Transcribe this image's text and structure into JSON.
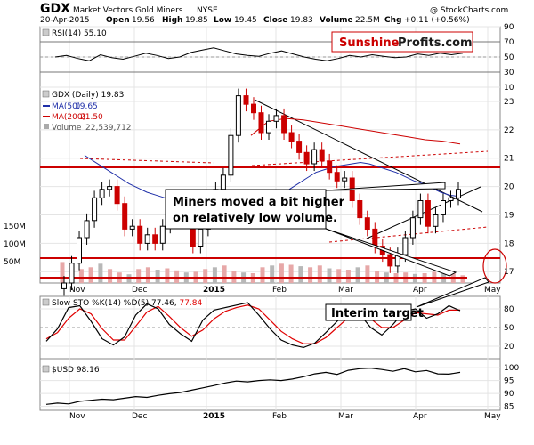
{
  "header": {
    "symbol": "GDX",
    "name": "Market Vectors Gold Miners",
    "exchange": "NYSE",
    "date": "20-Apr-2015",
    "open_label": "Open",
    "open": "19.56",
    "high_label": "High",
    "high": "19.85",
    "low_label": "Low",
    "low": "19.45",
    "close_label": "Close",
    "close": "19.83",
    "volume_label": "Volume",
    "volume": "22.5M",
    "chg_label": "Chg",
    "chg": "+0.11 (+0.56%)",
    "watermark": "@ StockCharts.com"
  },
  "brand": {
    "part1": "Sunshine",
    "part2": "Profits.com"
  },
  "annotations": {
    "main_line1": "Miners moved a bit higher",
    "main_line2": "on relatively low volume.",
    "target": "Interim target"
  },
  "colors": {
    "price_up": "#000000",
    "price_down": "#cc0000",
    "ma50": "#1f2fa8",
    "ma200": "#cc0000",
    "volume": "#e7a8a8",
    "rsi": "#000000",
    "sto_k": "#000000",
    "sto_d": "#e00000",
    "usd": "#000000",
    "resistance": "#cc0000",
    "trend": "#000000"
  },
  "chart_data": [
    {
      "type": "line",
      "title": "RSI(14) 55.10",
      "series": [
        {
          "name": "RSI(14)",
          "values": [
            50,
            52,
            48,
            45,
            53,
            49,
            47,
            51,
            55,
            52,
            48,
            50,
            56,
            59,
            62,
            58,
            54,
            52,
            51,
            55,
            58,
            54,
            50,
            47,
            45,
            48,
            52,
            50,
            53,
            51,
            49,
            50,
            54,
            52,
            55,
            53,
            55
          ]
        }
      ],
      "y_ticks": [
        10,
        30,
        50,
        70,
        90
      ],
      "ylim": [
        10,
        90
      ],
      "grid": true
    },
    {
      "type": "candlestick",
      "title": "GDX (Daily) 19.83",
      "legend": [
        {
          "name": "GDX (Daily)",
          "value": "19.83"
        },
        {
          "name": "MA(50)",
          "value": "19.65"
        },
        {
          "name": "MA(200)",
          "value": "21.50"
        },
        {
          "name": "Volume",
          "value": "22,539,712"
        }
      ],
      "x_labels": [
        "Nov",
        "Dec",
        "2015",
        "Feb",
        "Mar",
        "Apr",
        "May"
      ],
      "y_ticks": [
        17,
        18,
        19,
        20,
        21,
        22,
        23
      ],
      "ylim": [
        16.6,
        23.5
      ],
      "volume_ticks": [
        "50M",
        "100M",
        "150M"
      ],
      "close": [
        16.6,
        17.3,
        18.2,
        18.8,
        19.6,
        19.9,
        20.0,
        19.4,
        18.5,
        18.6,
        18.0,
        18.3,
        18.0,
        18.6,
        19.4,
        19.2,
        18.8,
        17.9,
        18.5,
        19.2,
        19.9,
        20.4,
        21.8,
        23.2,
        22.9,
        22.6,
        21.9,
        22.3,
        22.5,
        21.9,
        21.6,
        21.2,
        20.8,
        21.3,
        20.9,
        20.5,
        20.2,
        20.3,
        19.5,
        18.9,
        18.5,
        17.9,
        17.6,
        17.2,
        17.6,
        18.2,
        18.9,
        19.5,
        18.6,
        19.0,
        19.5,
        19.6,
        19.9
      ],
      "ma50": [
        21.1,
        20.9,
        20.7,
        20.5,
        20.3,
        20.1,
        19.95,
        19.8,
        19.7,
        19.6,
        19.5,
        19.45,
        19.4,
        19.35,
        19.3,
        19.3,
        19.3,
        19.35,
        19.4,
        19.45,
        19.5,
        19.6,
        19.75,
        19.9,
        20.1,
        20.3,
        20.5,
        20.6,
        20.7,
        20.75,
        20.8,
        20.85,
        20.8,
        20.7,
        20.6,
        20.5,
        20.35,
        20.2,
        20.1,
        19.95,
        19.8,
        19.7,
        19.65
      ],
      "ma200": [
        21.8,
        22.3,
        22.4,
        22.35,
        22.25,
        22.15,
        22.05,
        21.95,
        21.85,
        21.75,
        21.65,
        21.6,
        21.5
      ],
      "volume_m": [
        60,
        35,
        40,
        45,
        55,
        40,
        30,
        25,
        40,
        45,
        38,
        42,
        36,
        30,
        32,
        40,
        45,
        50,
        35,
        30,
        28,
        45,
        50,
        55,
        52,
        48,
        45,
        50,
        42,
        40,
        38,
        45,
        50,
        35,
        30,
        28,
        30,
        26,
        28,
        32,
        34,
        30,
        22
      ]
    },
    {
      "type": "line",
      "title": "Slow STO %K(14) %D(5) 77.46, 77.84",
      "series": [
        {
          "name": "%K(14)",
          "values": [
            28,
            48,
            82,
            85,
            60,
            32,
            22,
            35,
            70,
            88,
            80,
            55,
            40,
            28,
            62,
            78,
            82,
            86,
            90,
            70,
            48,
            30,
            22,
            18,
            25,
            42,
            60,
            78,
            72,
            50,
            38,
            55,
            76,
            80,
            65,
            72,
            85,
            77
          ]
        },
        {
          "name": "%D(5)",
          "values": [
            32,
            42,
            65,
            80,
            72,
            48,
            30,
            30,
            52,
            75,
            84,
            68,
            50,
            36,
            46,
            64,
            76,
            82,
            86,
            80,
            62,
            44,
            32,
            24,
            24,
            34,
            50,
            66,
            74,
            64,
            50,
            50,
            62,
            74,
            72,
            70,
            78,
            78
          ]
        }
      ],
      "y_ticks": [
        20,
        50,
        80
      ],
      "ylim": [
        0,
        100
      ],
      "grid": true
    },
    {
      "type": "line",
      "title": "$USD 98.16",
      "series": [
        {
          "name": "$USD",
          "values": [
            85.8,
            86.3,
            86.0,
            87.0,
            87.4,
            87.8,
            87.6,
            88.2,
            88.8,
            88.5,
            89.3,
            89.9,
            90.4,
            91.3,
            92.2,
            93.1,
            94.1,
            94.8,
            94.5,
            95.0,
            95.3,
            95.0,
            95.6,
            96.5,
            97.6,
            98.2,
            97.4,
            99.0,
            99.6,
            99.8,
            99.3,
            98.6,
            99.6,
            98.4,
            98.9,
            97.6,
            97.5,
            98.2
          ]
        }
      ],
      "y_ticks": [
        85,
        90,
        95,
        100
      ],
      "ylim": [
        83.5,
        103.5
      ],
      "grid": true
    }
  ]
}
